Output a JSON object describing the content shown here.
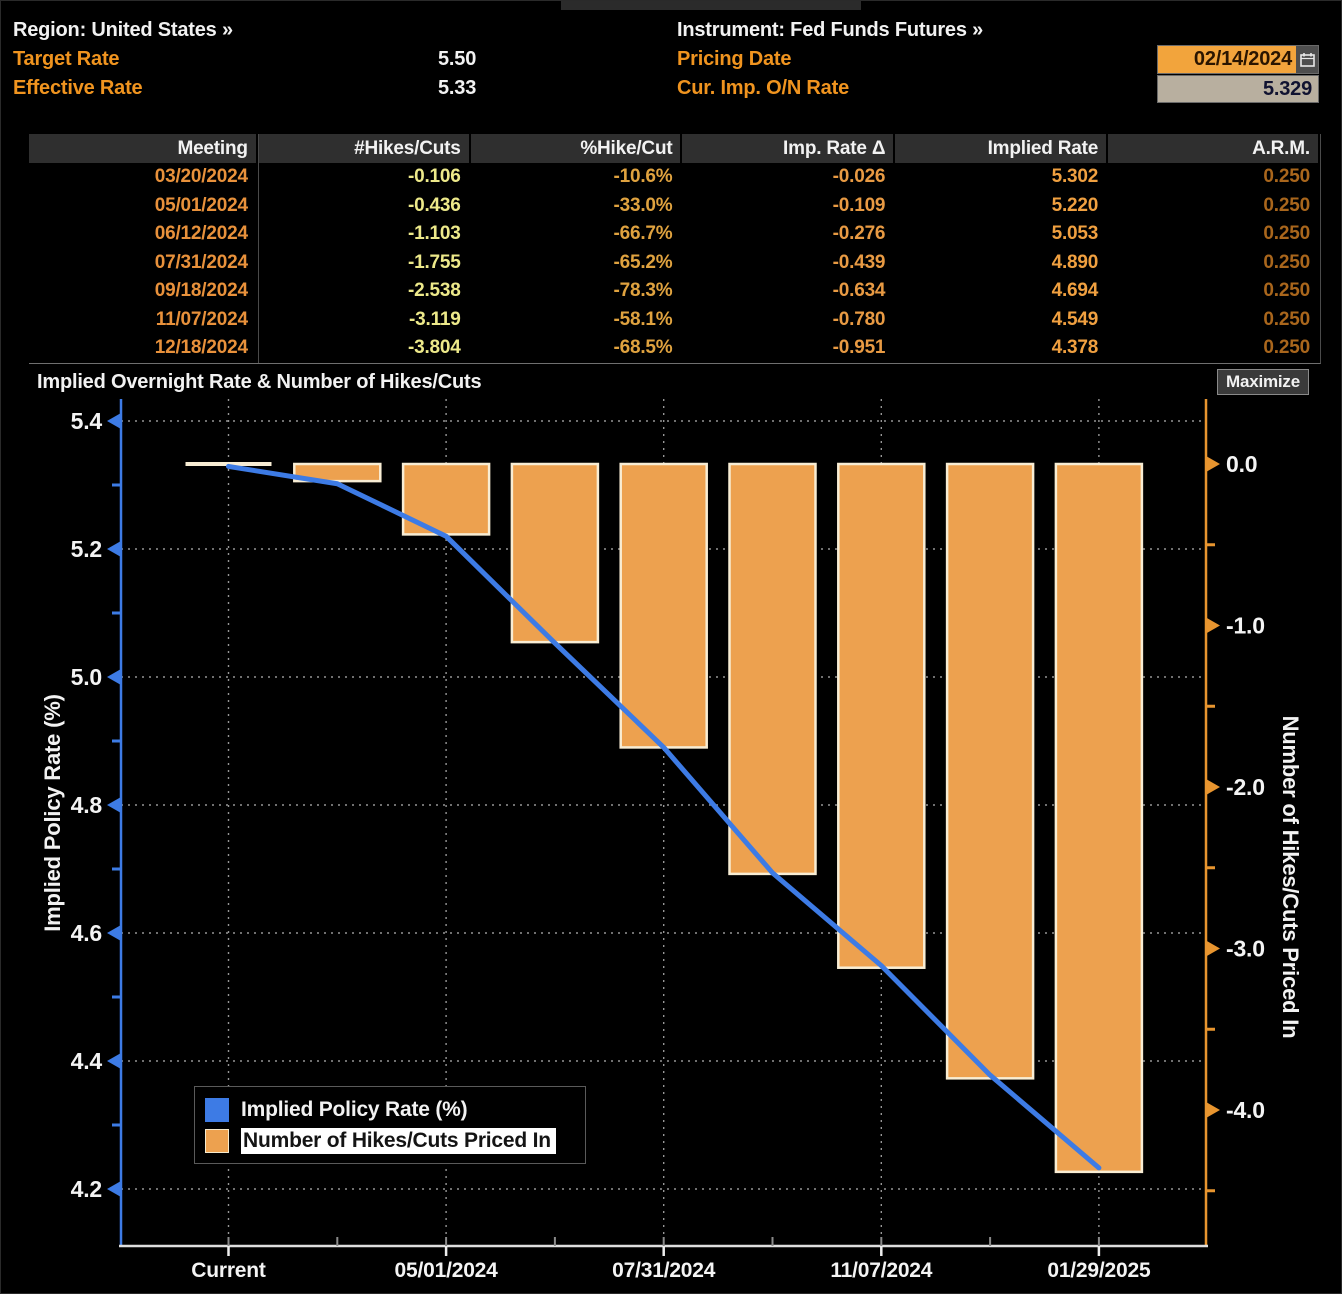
{
  "header": {
    "region_label": "Region:",
    "region_value": "United States »",
    "instrument_label": "Instrument:",
    "instrument_value": "Fed Funds Futures »",
    "target_rate_label": "Target Rate",
    "target_rate_value": "5.50",
    "effective_rate_label": "Effective Rate",
    "effective_rate_value": "5.33",
    "pricing_date_label": "Pricing Date",
    "pricing_date_value": "02/14/2024",
    "cur_imp_on_rate_label": "Cur. Imp. O/N Rate",
    "cur_imp_on_rate_value": "5.329"
  },
  "table": {
    "columns": [
      "Meeting",
      "#Hikes/Cuts",
      "%Hike/Cut",
      "Imp. Rate Δ",
      "Implied Rate",
      "A.R.M."
    ],
    "rows": [
      [
        "03/20/2024",
        "-0.106",
        "-10.6%",
        "-0.026",
        "5.302",
        "0.250"
      ],
      [
        "05/01/2024",
        "-0.436",
        "-33.0%",
        "-0.109",
        "5.220",
        "0.250"
      ],
      [
        "06/12/2024",
        "-1.103",
        "-66.7%",
        "-0.276",
        "5.053",
        "0.250"
      ],
      [
        "07/31/2024",
        "-1.755",
        "-65.2%",
        "-0.439",
        "4.890",
        "0.250"
      ],
      [
        "09/18/2024",
        "-2.538",
        "-78.3%",
        "-0.634",
        "4.694",
        "0.250"
      ],
      [
        "11/07/2024",
        "-3.119",
        "-58.1%",
        "-0.780",
        "4.549",
        "0.250"
      ],
      [
        "12/18/2024",
        "-3.804",
        "-68.5%",
        "-0.951",
        "4.378",
        "0.250"
      ]
    ]
  },
  "chart": {
    "title": "Implied Overnight Rate & Number of Hikes/Cuts",
    "maximize_label": "Maximize",
    "left_axis_title": "Implied Policy Rate (%)",
    "right_axis_title": "Number of Hikes/Cuts Priced In",
    "legend": [
      {
        "label": "Implied Policy Rate (%)",
        "color": "#3d7be5",
        "highlighted": false
      },
      {
        "label": "Number of Hikes/Cuts Priced In",
        "color": "#eda14f",
        "highlighted": true
      }
    ]
  },
  "chart_data": {
    "type": "line+bar",
    "categories": [
      "Current",
      "03/20/2024",
      "05/01/2024",
      "06/12/2024",
      "07/31/2024",
      "09/18/2024",
      "11/07/2024",
      "12/18/2024",
      "01/29/2025"
    ],
    "series": [
      {
        "name": "Implied Policy Rate (%)",
        "type": "line",
        "axis": "left",
        "values": [
          5.329,
          5.302,
          5.22,
          5.053,
          4.89,
          4.694,
          4.549,
          4.378,
          4.233
        ]
      },
      {
        "name": "Number of Hikes/Cuts Priced In",
        "type": "bar",
        "axis": "right",
        "values": [
          0,
          -0.106,
          -0.436,
          -1.103,
          -1.755,
          -2.538,
          -3.119,
          -3.804,
          -4.383
        ]
      }
    ],
    "left_axis": {
      "label": "Implied Policy Rate (%)",
      "ticks": [
        5.4,
        5.2,
        5.0,
        4.8,
        4.6,
        4.4,
        4.2
      ],
      "minor_ticks": [
        5.3,
        5.1,
        4.9,
        4.7,
        4.5,
        4.3
      ],
      "range": [
        4.11,
        5.43
      ]
    },
    "right_axis": {
      "label": "Number of Hikes/Cuts Priced In",
      "ticks": [
        0.0,
        -1.0,
        -2.0,
        -3.0,
        -4.0
      ],
      "minor_ticks": [
        -0.5,
        -1.5,
        -2.5,
        -3.5,
        -4.5
      ],
      "range": [
        -4.84,
        0.42
      ]
    },
    "x_tick_labels": [
      "Current",
      "05/01/2024",
      "07/31/2024",
      "11/07/2024",
      "01/29/2025"
    ],
    "x_labeled_indices": [
      0,
      2,
      4,
      6,
      8
    ],
    "grid": true,
    "legend_position": "bottom-left"
  },
  "colors": {
    "accent_amber": "#f0941f",
    "line": "#3d7be5",
    "left_axis": "#3d7be5",
    "right_axis": "#e8952f",
    "bar": "#eda14f",
    "bar_border": "#f8edd4",
    "grid": "#969696",
    "x_axis": "#dedede",
    "tick_label": "#f4f4f4",
    "date_field_bg": "#f2a43c",
    "rate_field_bg": "#b8af9f"
  }
}
